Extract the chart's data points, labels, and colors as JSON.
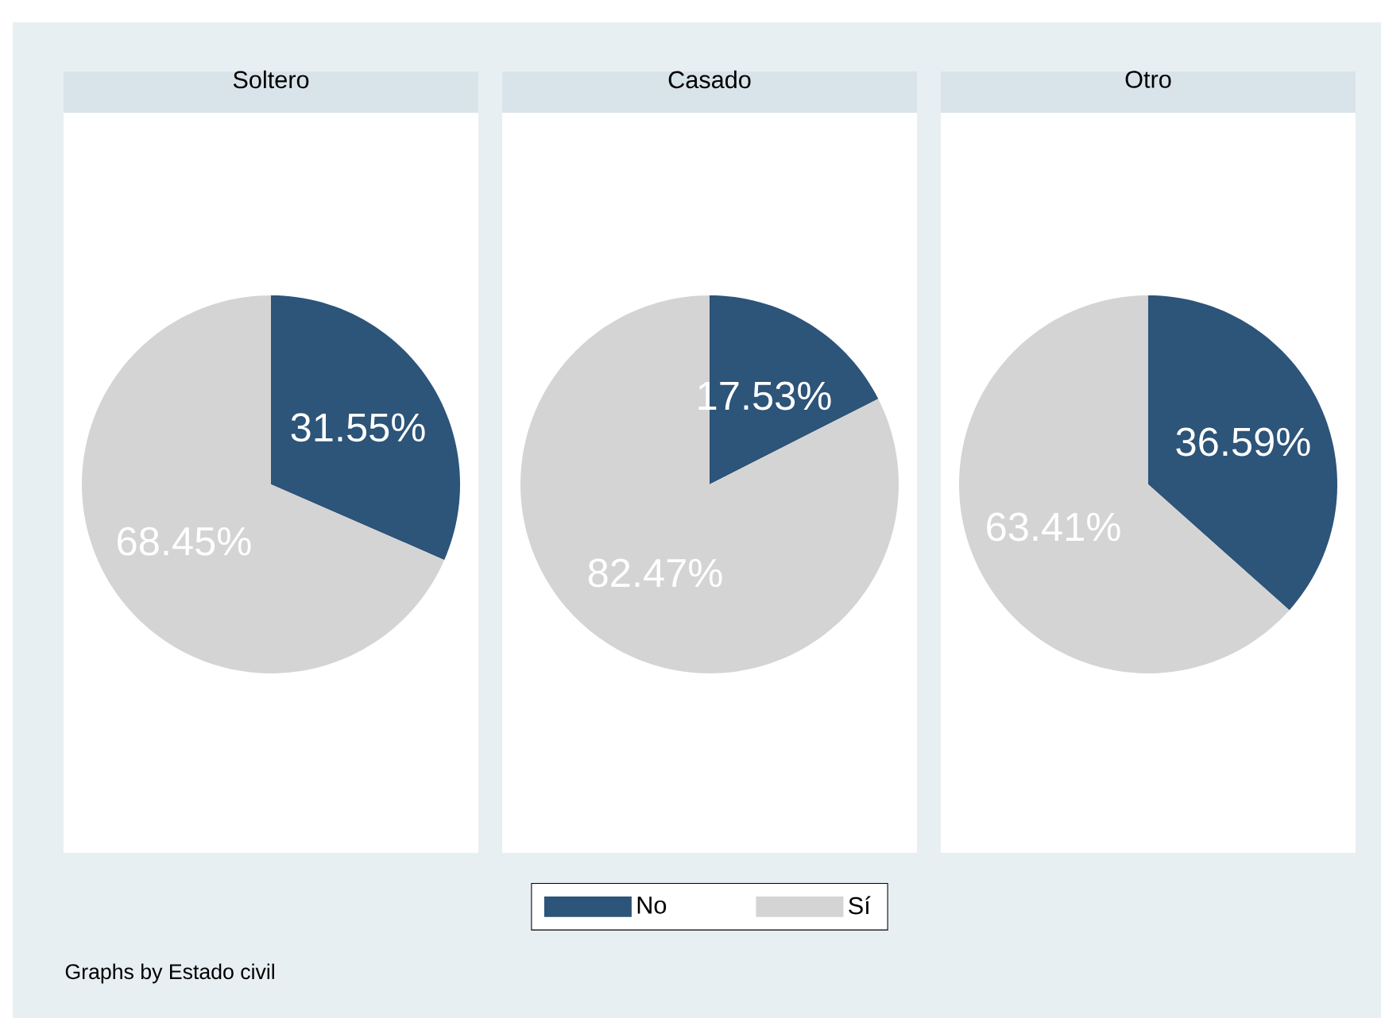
{
  "chart_data": [
    {
      "type": "pie",
      "title": "Soltero",
      "values": [
        31.55,
        68.45
      ],
      "colors": [
        "#2d5479",
        "#d4d4d4"
      ],
      "value_labels": [
        "31.55%",
        "68.45%"
      ],
      "annotations": [
        "Graphs by Estado civil"
      ]
    },
    {
      "type": "pie",
      "title": "Casado",
      "categories": [
        "No",
        "Sí"
      ],
      "values": [
        17.53,
        82.47
      ],
      "colors": [
        "#2d5479",
        "#d4d4d4"
      ],
      "value_labels": [
        "17.53%",
        "82.47%"
      ],
      "legend": "bottom"
    },
    {
      "type": "pie",
      "title": "Otro",
      "values": [
        36.59,
        63.41
      ],
      "colors": [
        "#2d5479",
        "#d4d4d4"
      ],
      "value_labels": [
        "36.59%",
        "63.41%"
      ]
    }
  ]
}
